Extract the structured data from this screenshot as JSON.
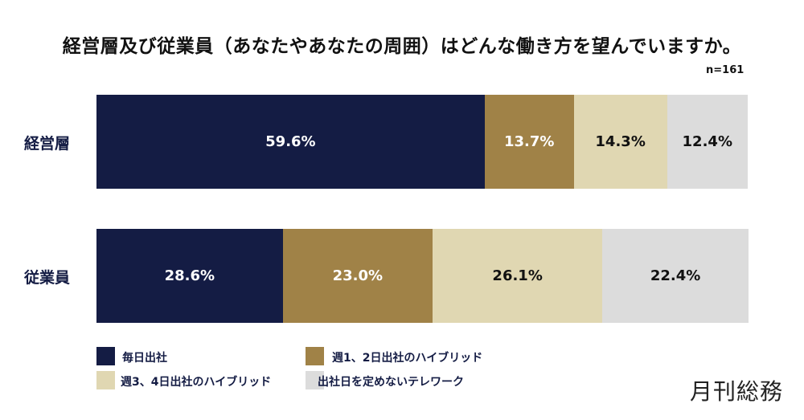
{
  "chart_data": {
    "type": "bar",
    "orientation": "horizontal-stacked-100",
    "title": "経営層及び従業員（あなたやあなたの周囲）はどんな働き方を望んでいますか。",
    "note": "n=161",
    "categories": [
      "経営層",
      "従業員"
    ],
    "series": [
      {
        "name": "毎日出社",
        "color": "#141c44",
        "text_color": "#ffffff",
        "values": [
          59.6,
          28.6
        ],
        "labels": [
          "59.6%",
          "28.6%"
        ]
      },
      {
        "name": "週1、2日出社のハイブリッド",
        "color": "#a08247",
        "text_color": "#ffffff",
        "values": [
          13.7,
          23.0
        ],
        "labels": [
          "13.7%",
          "23.0%"
        ]
      },
      {
        "name": "週3、4日出社のハイブリッド",
        "color": "#e0d7b2",
        "text_color": "#111111",
        "values": [
          14.3,
          26.1
        ],
        "labels": [
          "14.3%",
          "26.1%"
        ]
      },
      {
        "name": "出社日を定めないテレワーク",
        "color": "#dcdcdc",
        "text_color": "#111111",
        "values": [
          12.4,
          22.4
        ],
        "labels": [
          "12.4%",
          "22.4%"
        ]
      }
    ],
    "xlim": [
      0,
      100
    ],
    "legend_placement": "bottom-left"
  },
  "logo": "月刊総務"
}
